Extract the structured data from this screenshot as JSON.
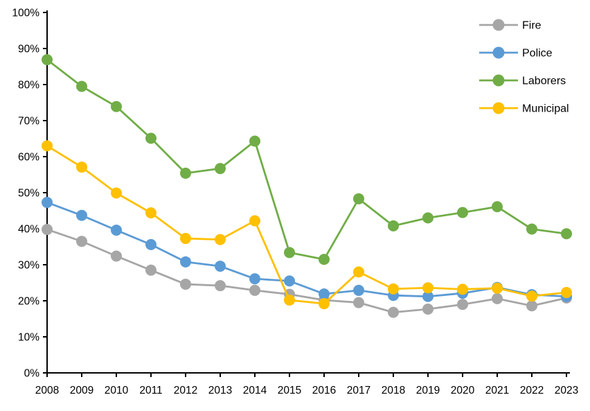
{
  "chart_data": {
    "type": "line",
    "title": "",
    "xlabel": "",
    "ylabel": "",
    "grid": false,
    "marker": "circle",
    "x_categories": [
      "2008",
      "2009",
      "2010",
      "2011",
      "2012",
      "2013",
      "2014",
      "2015",
      "2016",
      "2017",
      "2018",
      "2019",
      "2020",
      "2021",
      "2022",
      "2023"
    ],
    "series": [
      {
        "name": "Fire",
        "color": "#A6A6A6",
        "values": [
          39.8,
          36.5,
          32.4,
          28.5,
          24.6,
          24.2,
          22.9,
          21.8,
          20.2,
          19.5,
          16.8,
          17.7,
          19.0,
          20.6,
          18.6,
          20.8
        ]
      },
      {
        "name": "Police",
        "color": "#5B9BD5",
        "values": [
          47.3,
          43.7,
          39.6,
          35.6,
          30.8,
          29.6,
          26.1,
          25.5,
          21.9,
          22.9,
          21.5,
          21.2,
          22.1,
          23.7,
          21.7,
          21.2
        ]
      },
      {
        "name": "Laborers",
        "color": "#70AD47",
        "values": [
          86.9,
          79.5,
          73.9,
          65.1,
          55.4,
          56.7,
          64.3,
          33.4,
          31.5,
          48.3,
          40.8,
          43.0,
          44.5,
          46.1,
          39.9,
          38.6
        ]
      },
      {
        "name": "Municipal",
        "color": "#FFC000",
        "values": [
          63.0,
          57.1,
          49.9,
          44.4,
          37.3,
          37.0,
          42.2,
          20.2,
          19.2,
          28.0,
          23.3,
          23.6,
          23.2,
          23.5,
          21.3,
          22.3
        ]
      }
    ],
    "y_axis": {
      "min": 0,
      "max": 100,
      "step": 10,
      "tick_labels": [
        "0%",
        "10%",
        "20%",
        "30%",
        "40%",
        "50%",
        "60%",
        "70%",
        "80%",
        "90%",
        "100%"
      ]
    },
    "legend": {
      "position": "top-right",
      "entries": [
        "Fire",
        "Police",
        "Laborers",
        "Municipal"
      ]
    }
  },
  "colors": {
    "axis": "#000000",
    "background": "#FFFFFF",
    "text": "#000000"
  }
}
